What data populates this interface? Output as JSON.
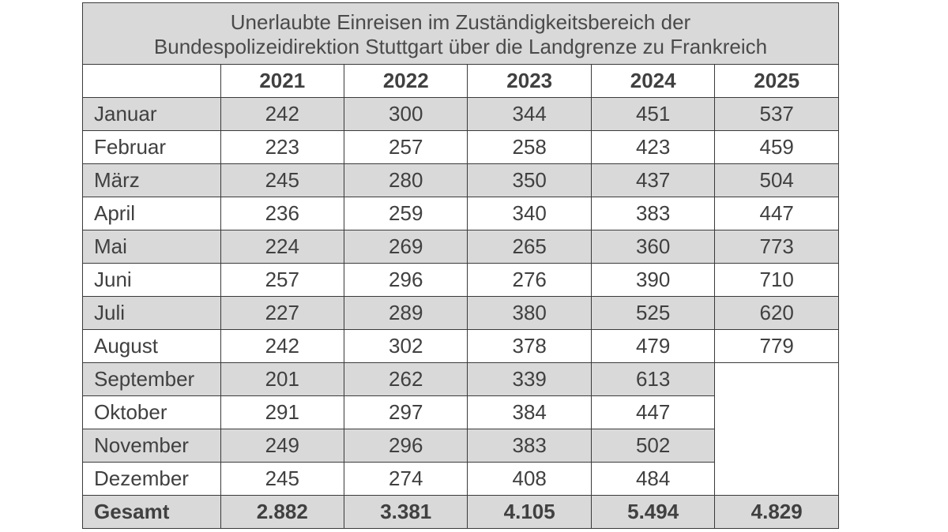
{
  "title_lines": [
    "Unerlaubte Einreisen im Zuständigkeitsbereich der",
    "Bundespolizeidirektion Stuttgart über die Landgrenze zu Frankreich"
  ],
  "years": [
    "2021",
    "2022",
    "2023",
    "2024",
    "2025"
  ],
  "rows": [
    {
      "month": "Januar",
      "values": [
        "242",
        "300",
        "344",
        "451",
        "537"
      ]
    },
    {
      "month": "Februar",
      "values": [
        "223",
        "257",
        "258",
        "423",
        "459"
      ]
    },
    {
      "month": "März",
      "values": [
        "245",
        "280",
        "350",
        "437",
        "504"
      ]
    },
    {
      "month": "April",
      "values": [
        "236",
        "259",
        "340",
        "383",
        "447"
      ]
    },
    {
      "month": "Mai",
      "values": [
        "224",
        "269",
        "265",
        "360",
        "773"
      ]
    },
    {
      "month": "Juni",
      "values": [
        "257",
        "296",
        "276",
        "390",
        "710"
      ]
    },
    {
      "month": "Juli",
      "values": [
        "227",
        "289",
        "380",
        "525",
        "620"
      ]
    },
    {
      "month": "August",
      "values": [
        "242",
        "302",
        "378",
        "479",
        "779"
      ]
    },
    {
      "month": "September",
      "values": [
        "201",
        "262",
        "339",
        "613",
        ""
      ]
    },
    {
      "month": "Oktober",
      "values": [
        "291",
        "297",
        "384",
        "447",
        ""
      ]
    },
    {
      "month": "November",
      "values": [
        "249",
        "296",
        "383",
        "502",
        ""
      ]
    },
    {
      "month": "Dezember",
      "values": [
        "245",
        "274",
        "408",
        "484",
        ""
      ]
    }
  ],
  "total": {
    "label": "Gesamt",
    "values": [
      "2.882",
      "3.381",
      "4.105",
      "5.494",
      "4.829"
    ]
  },
  "colors": {
    "shade": "#d9d9d9",
    "border": "#3a3a3a",
    "text": "#404040"
  }
}
